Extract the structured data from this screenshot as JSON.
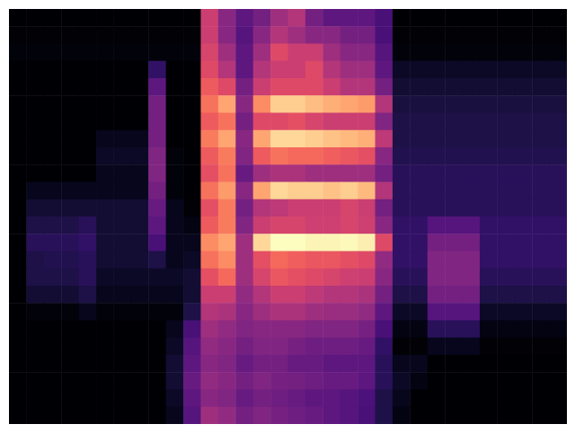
{
  "chart_data": {
    "type": "heatmap",
    "color": "magma",
    "tick_labels": false,
    "cells": [
      [
        3,
        3,
        3,
        3,
        3,
        3,
        3,
        3,
        3,
        3,
        3,
        55,
        40,
        30,
        35,
        45,
        50,
        35,
        30,
        30,
        30,
        25,
        3,
        3,
        3,
        3,
        3,
        3,
        3,
        3,
        3,
        3
      ],
      [
        4,
        4,
        4,
        4,
        4,
        4,
        4,
        4,
        4,
        4,
        4,
        55,
        40,
        28,
        40,
        50,
        45,
        40,
        40,
        35,
        35,
        25,
        4,
        4,
        4,
        4,
        4,
        4,
        4,
        4,
        4,
        4
      ],
      [
        5,
        5,
        5,
        5,
        5,
        5,
        5,
        5,
        5,
        5,
        5,
        58,
        45,
        30,
        45,
        60,
        55,
        55,
        45,
        40,
        40,
        28,
        5,
        5,
        5,
        5,
        5,
        5,
        5,
        5,
        5,
        5
      ],
      [
        3,
        3,
        3,
        3,
        3,
        3,
        3,
        3,
        20,
        3,
        3,
        60,
        50,
        30,
        50,
        55,
        55,
        60,
        50,
        45,
        45,
        30,
        10,
        10,
        10,
        10,
        10,
        10,
        10,
        10,
        10,
        10
      ],
      [
        3,
        3,
        3,
        3,
        3,
        3,
        3,
        3,
        30,
        3,
        3,
        65,
        60,
        35,
        55,
        60,
        60,
        60,
        55,
        50,
        50,
        35,
        12,
        12,
        12,
        12,
        12,
        12,
        12,
        12,
        12,
        12
      ],
      [
        3,
        3,
        3,
        3,
        3,
        3,
        3,
        3,
        35,
        3,
        3,
        70,
        80,
        40,
        75,
        88,
        88,
        85,
        82,
        80,
        78,
        50,
        14,
        14,
        14,
        14,
        14,
        14,
        14,
        14,
        14,
        14
      ],
      [
        3,
        3,
        3,
        3,
        3,
        3,
        3,
        3,
        35,
        3,
        3,
        65,
        70,
        35,
        60,
        60,
        62,
        58,
        55,
        55,
        55,
        38,
        15,
        15,
        15,
        15,
        15,
        15,
        15,
        15,
        15,
        15
      ],
      [
        3,
        3,
        3,
        3,
        3,
        8,
        8,
        8,
        35,
        3,
        3,
        72,
        80,
        40,
        80,
        90,
        90,
        88,
        86,
        84,
        82,
        52,
        15,
        15,
        15,
        15,
        15,
        15,
        15,
        15,
        15,
        15
      ],
      [
        3,
        3,
        3,
        3,
        3,
        10,
        10,
        10,
        38,
        5,
        3,
        65,
        72,
        38,
        65,
        70,
        68,
        68,
        66,
        64,
        62,
        40,
        16,
        16,
        16,
        16,
        16,
        16,
        16,
        16,
        16,
        16
      ],
      [
        3,
        3,
        3,
        3,
        3,
        8,
        8,
        8,
        38,
        5,
        3,
        62,
        70,
        32,
        45,
        48,
        48,
        45,
        45,
        45,
        45,
        35,
        18,
        18,
        18,
        18,
        18,
        18,
        18,
        18,
        18,
        18
      ],
      [
        3,
        8,
        8,
        8,
        8,
        8,
        8,
        8,
        35,
        5,
        3,
        70,
        78,
        40,
        80,
        90,
        88,
        88,
        86,
        88,
        84,
        50,
        18,
        18,
        18,
        18,
        18,
        18,
        18,
        18,
        18,
        18
      ],
      [
        3,
        12,
        12,
        12,
        12,
        12,
        12,
        12,
        32,
        8,
        4,
        62,
        72,
        35,
        50,
        52,
        55,
        55,
        55,
        58,
        55,
        35,
        18,
        18,
        18,
        18,
        18,
        18,
        18,
        18,
        18,
        18
      ],
      [
        3,
        15,
        15,
        15,
        18,
        12,
        12,
        12,
        30,
        8,
        6,
        65,
        72,
        38,
        55,
        58,
        58,
        56,
        56,
        58,
        56,
        40,
        20,
        20,
        28,
        28,
        28,
        20,
        20,
        20,
        20,
        20
      ],
      [
        3,
        18,
        18,
        18,
        20,
        12,
        12,
        12,
        25,
        8,
        8,
        75,
        80,
        45,
        90,
        98,
        98,
        96,
        96,
        97,
        95,
        60,
        20,
        20,
        35,
        35,
        35,
        20,
        20,
        20,
        20,
        20
      ],
      [
        3,
        15,
        16,
        16,
        18,
        12,
        12,
        12,
        15,
        8,
        10,
        70,
        75,
        45,
        62,
        68,
        66,
        64,
        64,
        62,
        60,
        42,
        20,
        20,
        38,
        38,
        38,
        20,
        20,
        20,
        20,
        20
      ],
      [
        3,
        15,
        15,
        15,
        18,
        10,
        10,
        10,
        10,
        10,
        12,
        62,
        68,
        45,
        58,
        64,
        62,
        60,
        58,
        56,
        55,
        40,
        18,
        18,
        38,
        38,
        38,
        18,
        18,
        18,
        18,
        18
      ],
      [
        3,
        12,
        12,
        12,
        15,
        8,
        8,
        8,
        8,
        8,
        12,
        55,
        55,
        42,
        50,
        55,
        55,
        52,
        50,
        50,
        48,
        35,
        15,
        15,
        35,
        35,
        35,
        15,
        15,
        15,
        15,
        15
      ],
      [
        3,
        5,
        5,
        5,
        8,
        5,
        5,
        5,
        5,
        5,
        15,
        50,
        48,
        40,
        45,
        48,
        48,
        45,
        44,
        44,
        42,
        30,
        10,
        10,
        28,
        28,
        28,
        10,
        10,
        10,
        10,
        10
      ],
      [
        3,
        3,
        3,
        3,
        3,
        3,
        3,
        3,
        3,
        8,
        25,
        45,
        42,
        38,
        40,
        40,
        40,
        38,
        38,
        38,
        36,
        25,
        6,
        6,
        18,
        18,
        18,
        6,
        6,
        6,
        6,
        6
      ],
      [
        3,
        3,
        3,
        3,
        3,
        3,
        3,
        3,
        3,
        10,
        28,
        42,
        40,
        35,
        38,
        38,
        36,
        34,
        34,
        34,
        32,
        20,
        4,
        4,
        8,
        8,
        8,
        4,
        4,
        4,
        4,
        4
      ],
      [
        3,
        3,
        3,
        3,
        3,
        3,
        3,
        3,
        3,
        12,
        30,
        40,
        38,
        32,
        35,
        35,
        32,
        32,
        30,
        30,
        30,
        18,
        8,
        8,
        3,
        3,
        3,
        3,
        3,
        3,
        3,
        3
      ],
      [
        3,
        3,
        3,
        3,
        3,
        3,
        3,
        3,
        3,
        12,
        32,
        42,
        40,
        35,
        38,
        36,
        35,
        34,
        32,
        32,
        30,
        18,
        10,
        6,
        3,
        3,
        3,
        3,
        3,
        3,
        3,
        3
      ],
      [
        3,
        3,
        3,
        3,
        3,
        3,
        3,
        3,
        3,
        10,
        30,
        40,
        38,
        32,
        35,
        34,
        32,
        30,
        30,
        28,
        26,
        15,
        8,
        3,
        3,
        3,
        3,
        3,
        3,
        3,
        3,
        3
      ],
      [
        3,
        3,
        3,
        3,
        3,
        3,
        3,
        3,
        3,
        8,
        28,
        45,
        42,
        35,
        38,
        36,
        34,
        32,
        30,
        28,
        25,
        15,
        6,
        3,
        3,
        3,
        3,
        3,
        3,
        3,
        3,
        3
      ]
    ]
  }
}
